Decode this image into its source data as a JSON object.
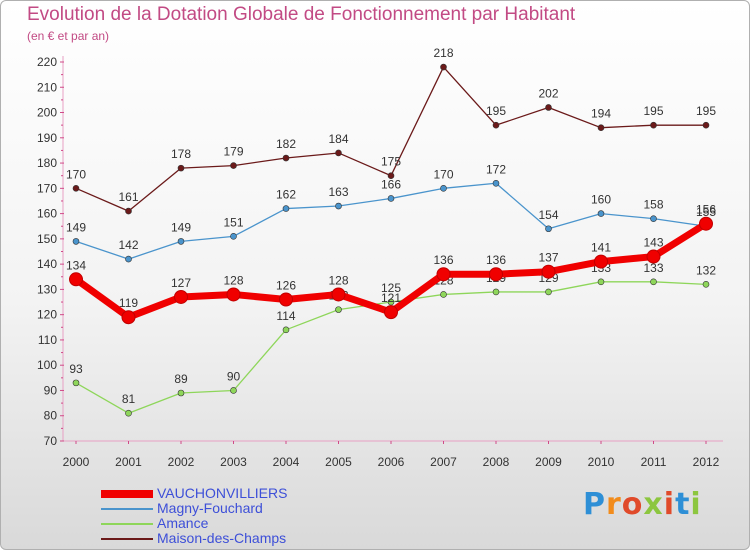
{
  "chart_data": {
    "type": "line",
    "title": "Evolution de la Dotation Globale de Fonctionnement par Habitant",
    "subtitle": "(en € et par an)",
    "xlabel": "",
    "ylabel": "",
    "ylim": [
      70,
      220
    ],
    "yticks": [
      70,
      80,
      90,
      100,
      110,
      120,
      130,
      140,
      150,
      160,
      170,
      180,
      190,
      200,
      210,
      220
    ],
    "categories": [
      "2000",
      "2001",
      "2002",
      "2003",
      "2004",
      "2005",
      "2006",
      "2007",
      "2008",
      "2009",
      "2010",
      "2011",
      "2012"
    ],
    "series": [
      {
        "name": "Maison-des-Champs",
        "color": "#6b1a1a",
        "values": [
          170,
          161,
          178,
          179,
          182,
          184,
          175,
          218,
          195,
          202,
          194,
          195,
          195
        ]
      },
      {
        "name": "Magny-Fouchard",
        "color": "#4a94cc",
        "values": [
          149,
          142,
          149,
          151,
          162,
          163,
          166,
          170,
          172,
          154,
          160,
          158,
          155
        ]
      },
      {
        "name": "Amance",
        "color": "#8ed65a",
        "values": [
          93,
          81,
          89,
          90,
          114,
          122,
          125,
          128,
          129,
          129,
          133,
          133,
          132
        ]
      },
      {
        "name": "VAUCHONVILLIERS",
        "color": "#f00000",
        "values": [
          134,
          119,
          127,
          128,
          126,
          128,
          121,
          136,
          136,
          137,
          141,
          143,
          156
        ]
      }
    ],
    "legend": [
      "VAUCHONVILLIERS",
      "Magny-Fouchard",
      "Amance",
      "Maison-des-Champs"
    ],
    "legend_position": "bottom-left",
    "grid": false
  },
  "logo": {
    "text": "Proxiti",
    "letter_colors": [
      "#2e8fd6",
      "#f28c1c",
      "#e04a2a",
      "#8cc63f",
      "#e04a2a",
      "#2e8fd6",
      "#8cc63f"
    ]
  }
}
